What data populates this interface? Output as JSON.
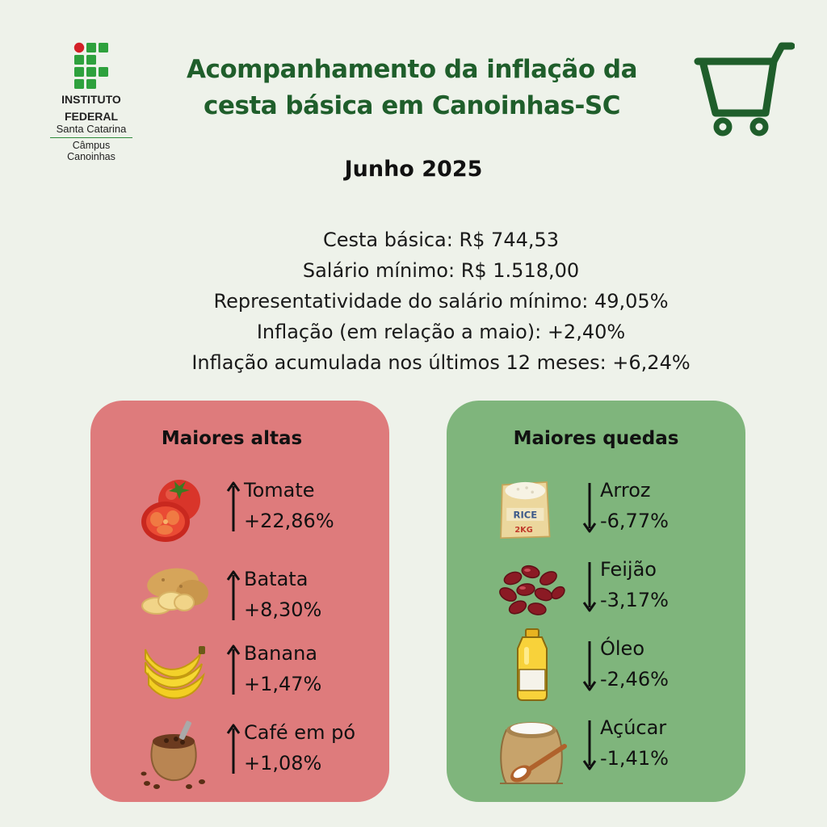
{
  "logo": {
    "line1": "INSTITUTO",
    "line2": "FEDERAL",
    "line3": "Santa Catarina",
    "campus1": "Câmpus",
    "campus2": "Canoinhas"
  },
  "header": {
    "title_line1": "Acompanhamento da inflação da",
    "title_line2": "cesta básica em Canoinhas-SC",
    "cart_icon": "shopping-cart-icon"
  },
  "month": "Junho 2025",
  "stats": [
    "Cesta básica: R$ 744,53",
    "Salário mínimo: R$ 1.518,00",
    "Representatividade do salário mínimo: 49,05%",
    "Inflação (em relação a maio): +2,40%",
    "Inflação acumulada nos últimos 12 meses: +6,24%"
  ],
  "highs": {
    "title": "Maiores altas",
    "items": [
      {
        "name": "Tomate",
        "pct": "+22,86%",
        "icon": "tomato-icon"
      },
      {
        "name": "Batata",
        "pct": "+8,30%",
        "icon": "potato-icon"
      },
      {
        "name": "Banana",
        "pct": "+1,47%",
        "icon": "banana-icon"
      },
      {
        "name": "Café em pó",
        "pct": "+1,08%",
        "icon": "coffee-icon"
      }
    ]
  },
  "lows": {
    "title": "Maiores quedas",
    "items": [
      {
        "name": "Arroz",
        "pct": "-6,77%",
        "icon": "rice-bag-icon"
      },
      {
        "name": "Feijão",
        "pct": "-3,17%",
        "icon": "beans-icon"
      },
      {
        "name": "Óleo",
        "pct": "-2,46%",
        "icon": "oil-bottle-icon"
      },
      {
        "name": "Açúcar",
        "pct": "-1,41%",
        "icon": "sugar-sack-icon"
      }
    ],
    "rice_label": "RICE",
    "rice_weight": "2KG"
  },
  "colors": {
    "background": "#eef2ea",
    "brand_green": "#1f5e2b",
    "highs_panel": "#de7b7c",
    "lows_panel": "#7fb57c"
  }
}
